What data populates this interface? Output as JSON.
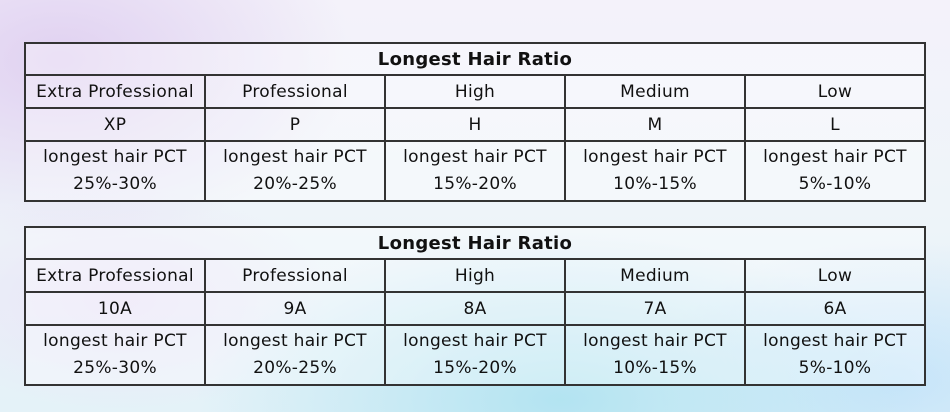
{
  "tables": [
    {
      "title": "Longest Hair Ratio",
      "grades": [
        "Extra Professional",
        "Professional",
        "High",
        "Medium",
        "Low"
      ],
      "codes": [
        "XP",
        "P",
        "H",
        "M",
        "L"
      ],
      "pct_label": "longest hair PCT",
      "ranges": [
        "25%-30%",
        "20%-25%",
        "15%-20%",
        "10%-15%",
        "5%-10%"
      ]
    },
    {
      "title": "Longest Hair Ratio",
      "grades": [
        "Extra Professional",
        "Professional",
        "High",
        "Medium",
        "Low"
      ],
      "codes": [
        "10A",
        "9A",
        "8A",
        "7A",
        "6A"
      ],
      "pct_label": "longest hair PCT",
      "ranges": [
        "25%-30%",
        "20%-25%",
        "15%-20%",
        "10%-15%",
        "5%-10%"
      ]
    }
  ]
}
